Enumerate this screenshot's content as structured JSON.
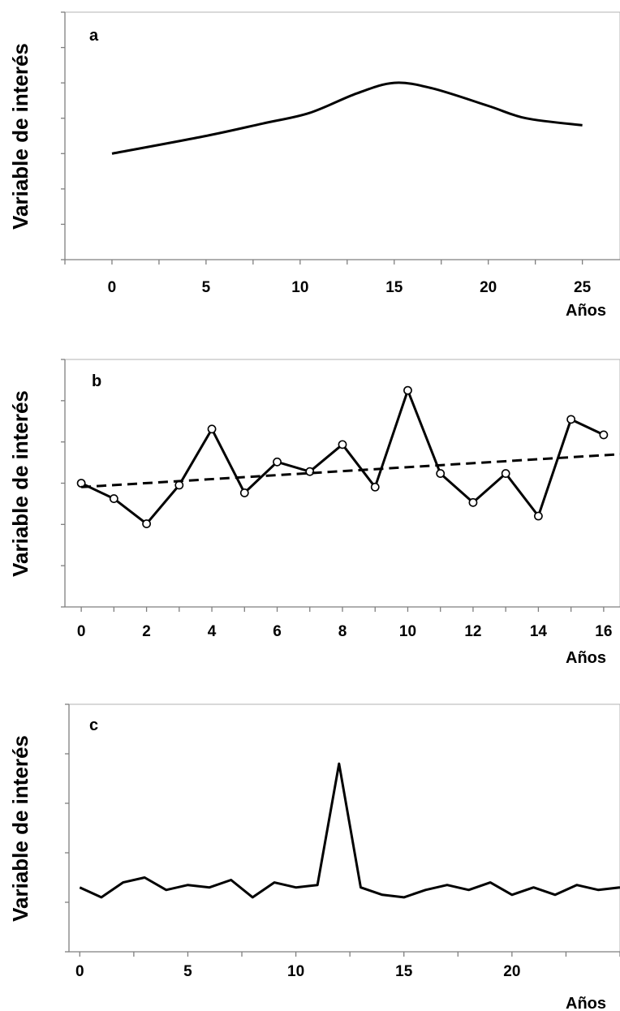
{
  "chart_data": [
    {
      "panel_label": "a",
      "type": "line",
      "ylabel": "Variable de interés",
      "xlabel": "Años",
      "x_ticks": [
        "0",
        "5",
        "10",
        "15",
        "20",
        "25"
      ],
      "xlim": [
        -2.5,
        27
      ],
      "ylim": [
        0,
        7
      ],
      "y_tick_count": 7,
      "series": [
        {
          "smooth": true,
          "x": [
            0,
            5,
            8,
            10.5,
            13,
            15,
            17,
            20,
            22,
            25
          ],
          "y": [
            3.0,
            3.5,
            3.85,
            4.15,
            4.7,
            5.0,
            4.85,
            4.35,
            4.0,
            3.8
          ]
        }
      ]
    },
    {
      "panel_label": "b",
      "type": "line",
      "ylabel": "Variable de interés",
      "xlabel": "Años",
      "x_ticks": [
        "0",
        "2",
        "4",
        "6",
        "8",
        "10",
        "12",
        "14",
        "16"
      ],
      "xlim": [
        -0.5,
        16.5
      ],
      "ylim": [
        0,
        6.4
      ],
      "y_tick_count": 6,
      "series": [
        {
          "markers": true,
          "x": [
            0,
            1,
            2,
            3,
            4,
            5,
            6,
            7,
            8,
            9,
            10,
            11,
            12,
            13,
            14,
            15,
            16
          ],
          "y": [
            3.2,
            2.8,
            2.15,
            3.15,
            4.6,
            2.95,
            3.75,
            3.5,
            4.2,
            3.1,
            5.6,
            3.45,
            2.7,
            3.45,
            2.35,
            4.85,
            4.45
          ]
        },
        {
          "dashed": true,
          "x": [
            0,
            16.5
          ],
          "y": [
            3.1,
            3.95
          ]
        }
      ]
    },
    {
      "panel_label": "c",
      "type": "line",
      "ylabel": "Variable de interés",
      "xlabel": "Años",
      "x_ticks": [
        "0",
        "5",
        "10",
        "15",
        "20"
      ],
      "xlim": [
        -0.5,
        25
      ],
      "ylim": [
        0,
        5
      ],
      "y_tick_count": 5,
      "series": [
        {
          "x": [
            0,
            1,
            2,
            3,
            4,
            5,
            6,
            7,
            8,
            9,
            10,
            11,
            12,
            13,
            14,
            15,
            16,
            17,
            18,
            19,
            20,
            21,
            22,
            23,
            24,
            25
          ],
          "y": [
            1.3,
            1.1,
            1.4,
            1.5,
            1.25,
            1.35,
            1.3,
            1.45,
            1.1,
            1.4,
            1.3,
            1.35,
            3.8,
            1.3,
            1.15,
            1.1,
            1.25,
            1.35,
            1.25,
            1.4,
            1.15,
            1.3,
            1.15,
            1.35,
            1.25,
            1.3
          ]
        }
      ]
    }
  ]
}
